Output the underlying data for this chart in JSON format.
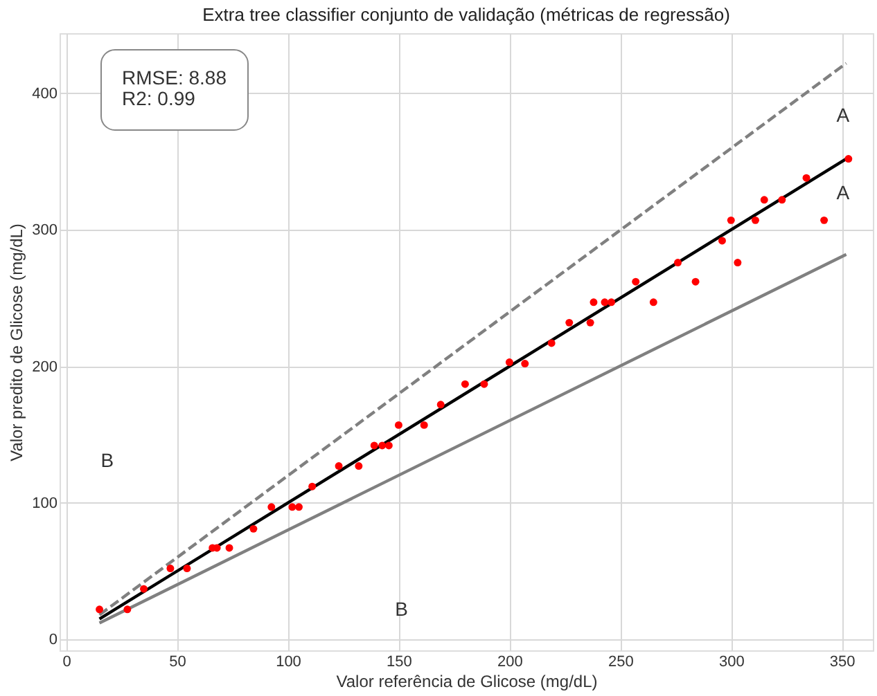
{
  "chart_data": {
    "type": "scatter",
    "title": "Extra tree classifier conjunto de validação (métricas de regressão)",
    "xlabel": "Valor referência de Glicose (mg/dL)",
    "ylabel": "Valor predito de Glicose (mg/dL)",
    "xlim": [
      -3,
      364
    ],
    "ylim": [
      -8,
      444
    ],
    "xticks": [
      0,
      50,
      100,
      150,
      200,
      250,
      300,
      350
    ],
    "yticks": [
      0,
      100,
      200,
      300,
      400
    ],
    "grid": true,
    "series": [
      {
        "type": "line",
        "color": "#808080",
        "line_style": "dashed",
        "marker": "none",
        "x": [
          15,
          352
        ],
        "values": [
          18,
          422
        ]
      },
      {
        "type": "line",
        "color": "#808080",
        "line_style": "solid",
        "marker": "none",
        "x": [
          15,
          352
        ],
        "values": [
          12,
          282
        ]
      },
      {
        "type": "line",
        "color": "#000000",
        "line_style": "solid",
        "marker": "none",
        "x": [
          15,
          353
        ],
        "values": [
          15,
          353
        ]
      },
      {
        "color": "#ff0000",
        "marker": "circle",
        "x": [
          353,
          334,
          315,
          323,
          300,
          311,
          342,
          296,
          303,
          276,
          284,
          257,
          265,
          238,
          243,
          246,
          227,
          236.5,
          219,
          200,
          207,
          180,
          188.6,
          169,
          161.5,
          150,
          139,
          142.6,
          145.6,
          123,
          132,
          111,
          92.6,
          102,
          105,
          84.5,
          66,
          68,
          73.6,
          47,
          54.5,
          35,
          15,
          27.6
        ],
        "values": [
          352,
          338,
          322,
          322,
          307,
          307,
          307,
          292,
          276,
          276,
          262,
          262,
          247,
          247,
          247,
          247,
          232,
          232,
          217,
          203,
          202,
          187,
          187,
          172,
          157,
          157,
          142,
          142,
          142,
          127,
          127,
          112,
          97,
          97,
          97,
          81,
          67,
          67,
          67,
          52,
          52,
          37,
          22,
          22
        ]
      }
    ],
    "annotations": [
      "RMSE: 8.88\nR2: 0.99",
      "A",
      "A",
      "B",
      "B"
    ]
  }
}
